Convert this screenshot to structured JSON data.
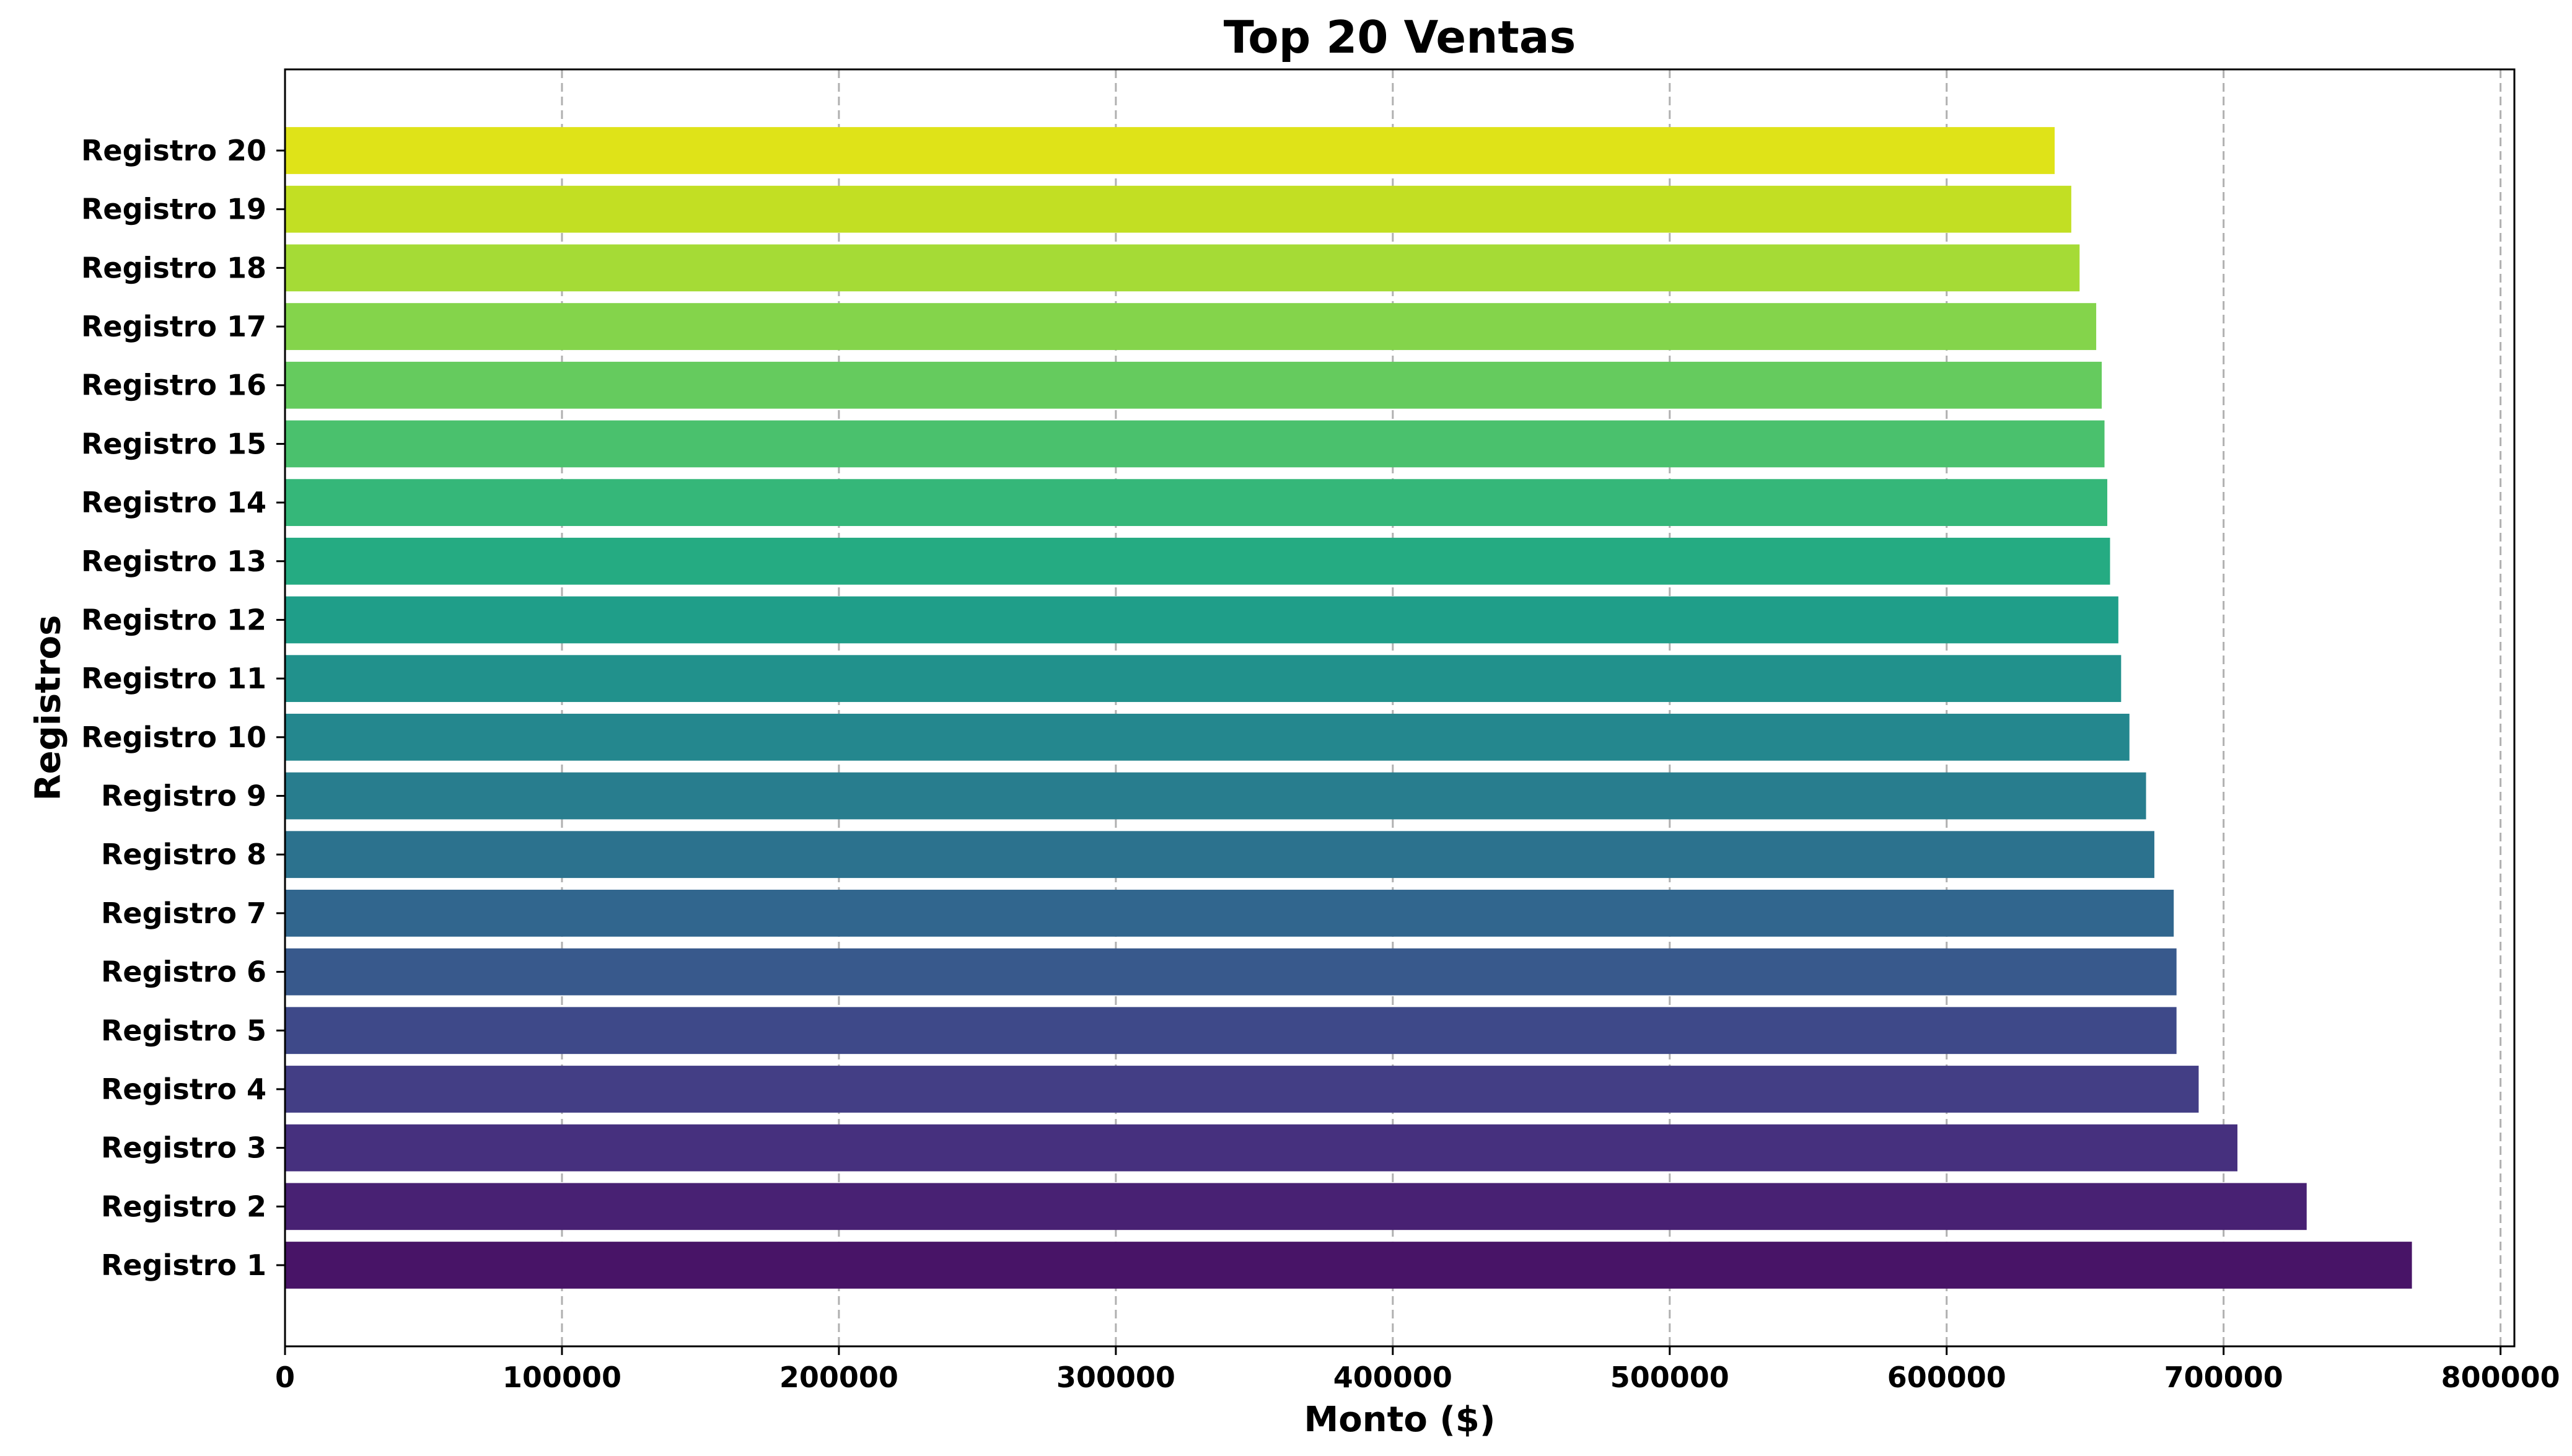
{
  "chart_data": {
    "type": "bar",
    "orientation": "horizontal",
    "title": "Top 20 Ventas",
    "xlabel": "Monto ($)",
    "ylabel": "Registros",
    "xlim": [
      0,
      805000
    ],
    "xticks": [
      0,
      100000,
      200000,
      300000,
      400000,
      500000,
      600000,
      700000,
      800000
    ],
    "xtick_labels": [
      "0",
      "100000",
      "200000",
      "300000",
      "400000",
      "500000",
      "600000",
      "700000",
      "800000"
    ],
    "grid": "x-axis dashed",
    "colormap": "viridis",
    "categories": [
      "Registro 1",
      "Registro 2",
      "Registro 3",
      "Registro 4",
      "Registro 5",
      "Registro 6",
      "Registro 7",
      "Registro 8",
      "Registro 9",
      "Registro 10",
      "Registro 11",
      "Registro 12",
      "Registro 13",
      "Registro 14",
      "Registro 15",
      "Registro 16",
      "Registro 17",
      "Registro 18",
      "Registro 19",
      "Registro 20"
    ],
    "values": [
      768000,
      730000,
      705000,
      691000,
      683000,
      683000,
      682000,
      675000,
      672000,
      666000,
      663000,
      662000,
      659000,
      658000,
      657000,
      656000,
      654000,
      648000,
      645000,
      639000
    ],
    "colors": [
      "#481467",
      "#482173",
      "#46307e",
      "#433e85",
      "#3e4989",
      "#38598c",
      "#31668e",
      "#2c728e",
      "#287d8e",
      "#24878e",
      "#21918c",
      "#1f9e89",
      "#25ab82",
      "#35b779",
      "#4ac16d",
      "#65cb5e",
      "#84d44b",
      "#a5db36",
      "#c2df23",
      "#dfe318"
    ]
  }
}
